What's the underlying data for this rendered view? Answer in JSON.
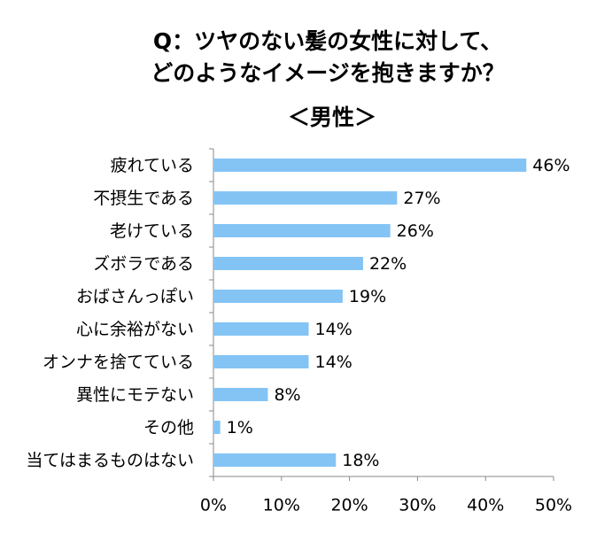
{
  "chart_data": {
    "type": "bar",
    "orientation": "horizontal",
    "title": [
      "Q：ツヤのない髪の女性に対して、",
      "どのようなイメージを抱きますか？"
    ],
    "subtitle": "＜男性＞",
    "categories": [
      "疲れている",
      "不摂生である",
      "老けている",
      "ズボラである",
      "おばさんっぽい",
      "心に余裕がない",
      "オンナを捨てている",
      "異性にモテない",
      "その他",
      "当てはまるものはない"
    ],
    "values": [
      46,
      27,
      26,
      22,
      19,
      14,
      14,
      8,
      1,
      18
    ],
    "value_labels": [
      "46%",
      "27%",
      "26%",
      "22%",
      "19%",
      "14%",
      "14%",
      "8%",
      "1%",
      "18%"
    ],
    "color": "#84c4f5",
    "xlim": [
      0,
      50
    ],
    "xticks": [
      {
        "value": 0,
        "label": "0%"
      },
      {
        "value": 10,
        "label": "10%"
      },
      {
        "value": 20,
        "label": "20%"
      },
      {
        "value": 30,
        "label": "30%"
      },
      {
        "value": 40,
        "label": "40%"
      },
      {
        "value": 50,
        "label": "50%"
      }
    ],
    "grid": false
  }
}
